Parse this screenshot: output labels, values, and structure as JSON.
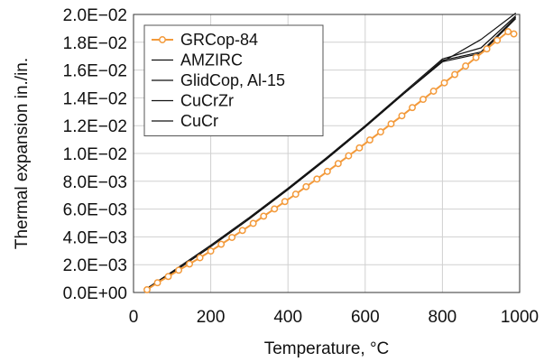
{
  "chart_data": {
    "type": "line",
    "xlabel": "Temperature, °C",
    "ylabel": "Thermal expansion in./in.",
    "xlim": [
      0,
      1000
    ],
    "ylim": [
      0,
      0.02
    ],
    "x_ticks": [
      {
        "value": 0,
        "label": "0"
      },
      {
        "value": 200,
        "label": "200"
      },
      {
        "value": 400,
        "label": "400"
      },
      {
        "value": 600,
        "label": "600"
      },
      {
        "value": 800,
        "label": "800"
      },
      {
        "value": 1000,
        "label": "1000"
      }
    ],
    "y_ticks": [
      {
        "value": 0,
        "label": "0.0E+00"
      },
      {
        "value": 0.002,
        "label": "2.0E−03"
      },
      {
        "value": 0.004,
        "label": "4.0E−03"
      },
      {
        "value": 0.006,
        "label": "6.0E−03"
      },
      {
        "value": 0.008,
        "label": "8.0E−03"
      },
      {
        "value": 0.01,
        "label": "1.0E−02"
      },
      {
        "value": 0.012,
        "label": "1.2E−02"
      },
      {
        "value": 0.014,
        "label": "1.4E−02"
      },
      {
        "value": 0.016,
        "label": "1.6E−02"
      },
      {
        "value": 0.018,
        "label": "1.8E−02"
      },
      {
        "value": 0.02,
        "label": "2.0E−02"
      }
    ],
    "grid": true,
    "legend_position": "top-left",
    "series": [
      {
        "name": "GRCop-84",
        "color": "#f39a3b",
        "marker": "circle",
        "x": [
          35,
          62,
          90,
          117,
          145,
          172,
          200,
          227,
          255,
          282,
          310,
          337,
          365,
          392,
          420,
          447,
          475,
          502,
          530,
          557,
          585,
          612,
          640,
          667,
          695,
          722,
          750,
          777,
          805,
          832,
          860,
          887,
          915,
          942,
          970,
          985
        ],
        "y": [
          0.0002,
          0.0007,
          0.00115,
          0.0016,
          0.00205,
          0.0025,
          0.00298,
          0.00347,
          0.00396,
          0.00446,
          0.00497,
          0.00549,
          0.00601,
          0.00654,
          0.00707,
          0.00761,
          0.00816,
          0.00871,
          0.00927,
          0.00983,
          0.0104,
          0.01097,
          0.01155,
          0.01213,
          0.01271,
          0.0133,
          0.01389,
          0.01448,
          0.01508,
          0.01568,
          0.01629,
          0.0169,
          0.01752,
          0.01814,
          0.01876,
          0.0186
        ]
      },
      {
        "name": "AMZIRC",
        "color": "#111111",
        "x": [
          35,
          100,
          200,
          300,
          400,
          500,
          600,
          700,
          800,
          900,
          990
        ],
        "y": [
          0.0003,
          0.0014,
          0.0033,
          0.0053,
          0.0074,
          0.0096,
          0.0119,
          0.0143,
          0.0166,
          0.0182,
          0.0201
        ]
      },
      {
        "name": "GlidCop, Al-15",
        "color": "#111111",
        "x": [
          35,
          100,
          200,
          300,
          400,
          500,
          600,
          700,
          800,
          900,
          990
        ],
        "y": [
          0.0003,
          0.0015,
          0.0034,
          0.0054,
          0.0075,
          0.0097,
          0.012,
          0.0144,
          0.0168,
          0.0176,
          0.0199
        ]
      },
      {
        "name": "CuCrZr",
        "color": "#111111",
        "x": [
          35,
          100,
          200,
          300,
          400,
          500,
          600,
          700,
          800,
          900,
          990
        ],
        "y": [
          0.0003,
          0.0014,
          0.0033,
          0.0053,
          0.0074,
          0.0096,
          0.0119,
          0.0143,
          0.0167,
          0.0173,
          0.0198
        ]
      },
      {
        "name": "CuCr",
        "color": "#111111",
        "x": [
          35,
          100,
          200,
          300,
          400,
          500,
          600,
          700,
          800,
          900,
          990
        ],
        "y": [
          0.0003,
          0.0014,
          0.0033,
          0.0053,
          0.0074,
          0.0096,
          0.0119,
          0.0143,
          0.0166,
          0.0172,
          0.0197
        ]
      }
    ]
  }
}
